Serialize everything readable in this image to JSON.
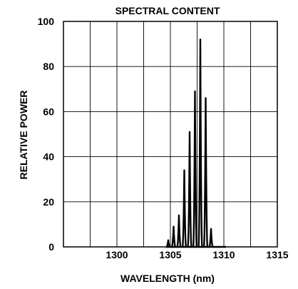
{
  "chart_data": {
    "type": "line",
    "title": "SPECTRAL CONTENT",
    "xlabel": "WAVELENGTH (nm)",
    "ylabel": "RELATIVE POWER",
    "xlim": [
      1295,
      1315
    ],
    "ylim": [
      0,
      100
    ],
    "x_ticks": [
      {
        "value": 1300,
        "label": "1300"
      },
      {
        "value": 1305,
        "label": "1305"
      },
      {
        "value": 1310,
        "label": "1310"
      },
      {
        "value": 1315,
        "label": "1315"
      }
    ],
    "y_ticks": [
      {
        "value": 0,
        "label": "0"
      },
      {
        "value": 20,
        "label": "20"
      },
      {
        "value": 40,
        "label": "40"
      },
      {
        "value": 60,
        "label": "60"
      },
      {
        "value": 80,
        "label": "80"
      },
      {
        "value": 100,
        "label": "100"
      }
    ],
    "grid": true,
    "x_grid_step": 2.5,
    "baseline_range": [
      1304.6,
      1310.2
    ],
    "peaks": [
      {
        "x": 1304.8,
        "y": 3
      },
      {
        "x": 1305.3,
        "y": 9
      },
      {
        "x": 1305.8,
        "y": 14
      },
      {
        "x": 1306.3,
        "y": 34
      },
      {
        "x": 1306.8,
        "y": 51
      },
      {
        "x": 1307.3,
        "y": 69
      },
      {
        "x": 1307.8,
        "y": 92
      },
      {
        "x": 1308.3,
        "y": 66
      },
      {
        "x": 1308.8,
        "y": 8
      }
    ]
  }
}
